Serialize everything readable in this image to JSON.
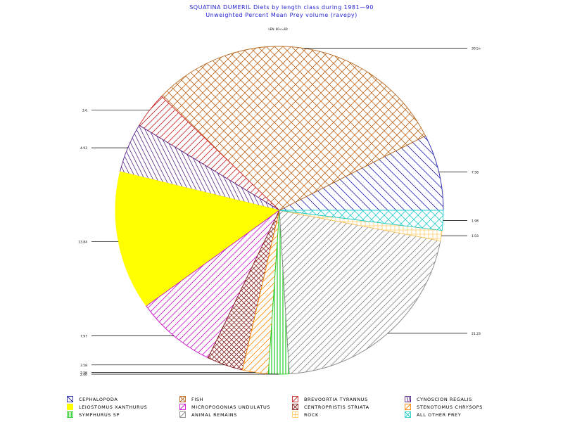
{
  "title": "SQUATINA DUMERIL Diets by length class during 1981—90",
  "subtitle": "Unweighted Percent Mean Prey volume (ravepy)",
  "subset_label": "LEN: 60<=69",
  "chart_data": {
    "type": "pie",
    "start_angle_deg": 0,
    "direction": "counterclockwise",
    "slices": [
      {
        "name": "CEPHALOPODA",
        "value": 7.58,
        "label": "7.58",
        "color": "#2222aa",
        "pattern": "hatch-backslash",
        "label_side": "right"
      },
      {
        "name": "FISH",
        "value": 30.5,
        "label": "30.5+",
        "color": "#b8661c",
        "pattern": "crosshatch",
        "label_side": "right"
      },
      {
        "name": "BREVOORTIA TYRANNUS",
        "value": 3.6,
        "label": "3.6",
        "color": "#cc2222",
        "pattern": "hatch-slash",
        "label_side": "left"
      },
      {
        "name": "CYNOSCION REGALIS",
        "value": 4.93,
        "label": "4.93",
        "color": "#552288",
        "pattern": "hatch-steep",
        "label_side": "left"
      },
      {
        "name": "LEIOSTOMUS XANTHURUS",
        "value": 13.84,
        "label": "13.84",
        "color": "#ffff00",
        "pattern": "solid",
        "label_side": "left"
      },
      {
        "name": "MICROPOGONIAS UNDULATUS",
        "value": 7.97,
        "label": "7.97",
        "color": "#cc11cc",
        "pattern": "hatch-slash",
        "label_side": "left"
      },
      {
        "name": "CENTROPRISTIS STRIATA",
        "value": 3.58,
        "label": "3.58",
        "color": "#882222",
        "pattern": "crosshatch-dense",
        "label_side": "left"
      },
      {
        "name": "STENOTOMUS CHRYSOPS",
        "value": 2.56,
        "label": "2.56",
        "color": "#ff8800",
        "pattern": "hatch-slash",
        "label_side": "left"
      },
      {
        "name": "SYMPHURUS SP",
        "value": 2.06,
        "label": "2.06",
        "color": "#22cc22",
        "pattern": "vertical",
        "label_side": "left"
      },
      {
        "name": "ANIMAL REMAINS",
        "value": 21.23,
        "label": "21.23",
        "color": "#888888",
        "pattern": "hatch-slash",
        "label_side": "right"
      },
      {
        "name": "ROCK",
        "value": 1.03,
        "label": "1.03",
        "color": "#ffcc66",
        "pattern": "grid",
        "label_side": "right"
      },
      {
        "name": "ALL OTHER PREY",
        "value": 1.98,
        "label": "1.98",
        "color": "#22cccc",
        "pattern": "crosshatch",
        "label_side": "right"
      }
    ],
    "legend_placement": "bottom"
  },
  "legend": [
    {
      "label": "CEPHALOPODA",
      "color": "#2222aa",
      "pattern": "hatch-backslash"
    },
    {
      "label": "FISH",
      "color": "#b8661c",
      "pattern": "crosshatch"
    },
    {
      "label": "BREVOORTIA TYRANNUS",
      "color": "#cc2222",
      "pattern": "hatch-slash"
    },
    {
      "label": "CYNOSCION REGALIS",
      "color": "#552288",
      "pattern": "hatch-steep"
    },
    {
      "label": "LEIOSTOMUS XANTHURUS",
      "color": "#ffff00",
      "pattern": "solid"
    },
    {
      "label": "MICROPOGONIAS UNDULATUS",
      "color": "#cc11cc",
      "pattern": "hatch-slash"
    },
    {
      "label": "CENTROPRISTIS STRIATA",
      "color": "#882222",
      "pattern": "crosshatch-dense"
    },
    {
      "label": "STENOTOMUS CHRYSOPS",
      "color": "#ff8800",
      "pattern": "hatch-slash"
    },
    {
      "label": "SYMPHURUS SP",
      "color": "#22cc22",
      "pattern": "vertical"
    },
    {
      "label": "ANIMAL REMAINS",
      "color": "#888888",
      "pattern": "hatch-slash"
    },
    {
      "label": "ROCK",
      "color": "#ffcc66",
      "pattern": "grid"
    },
    {
      "label": "ALL OTHER PREY",
      "color": "#22cccc",
      "pattern": "crosshatch"
    }
  ]
}
